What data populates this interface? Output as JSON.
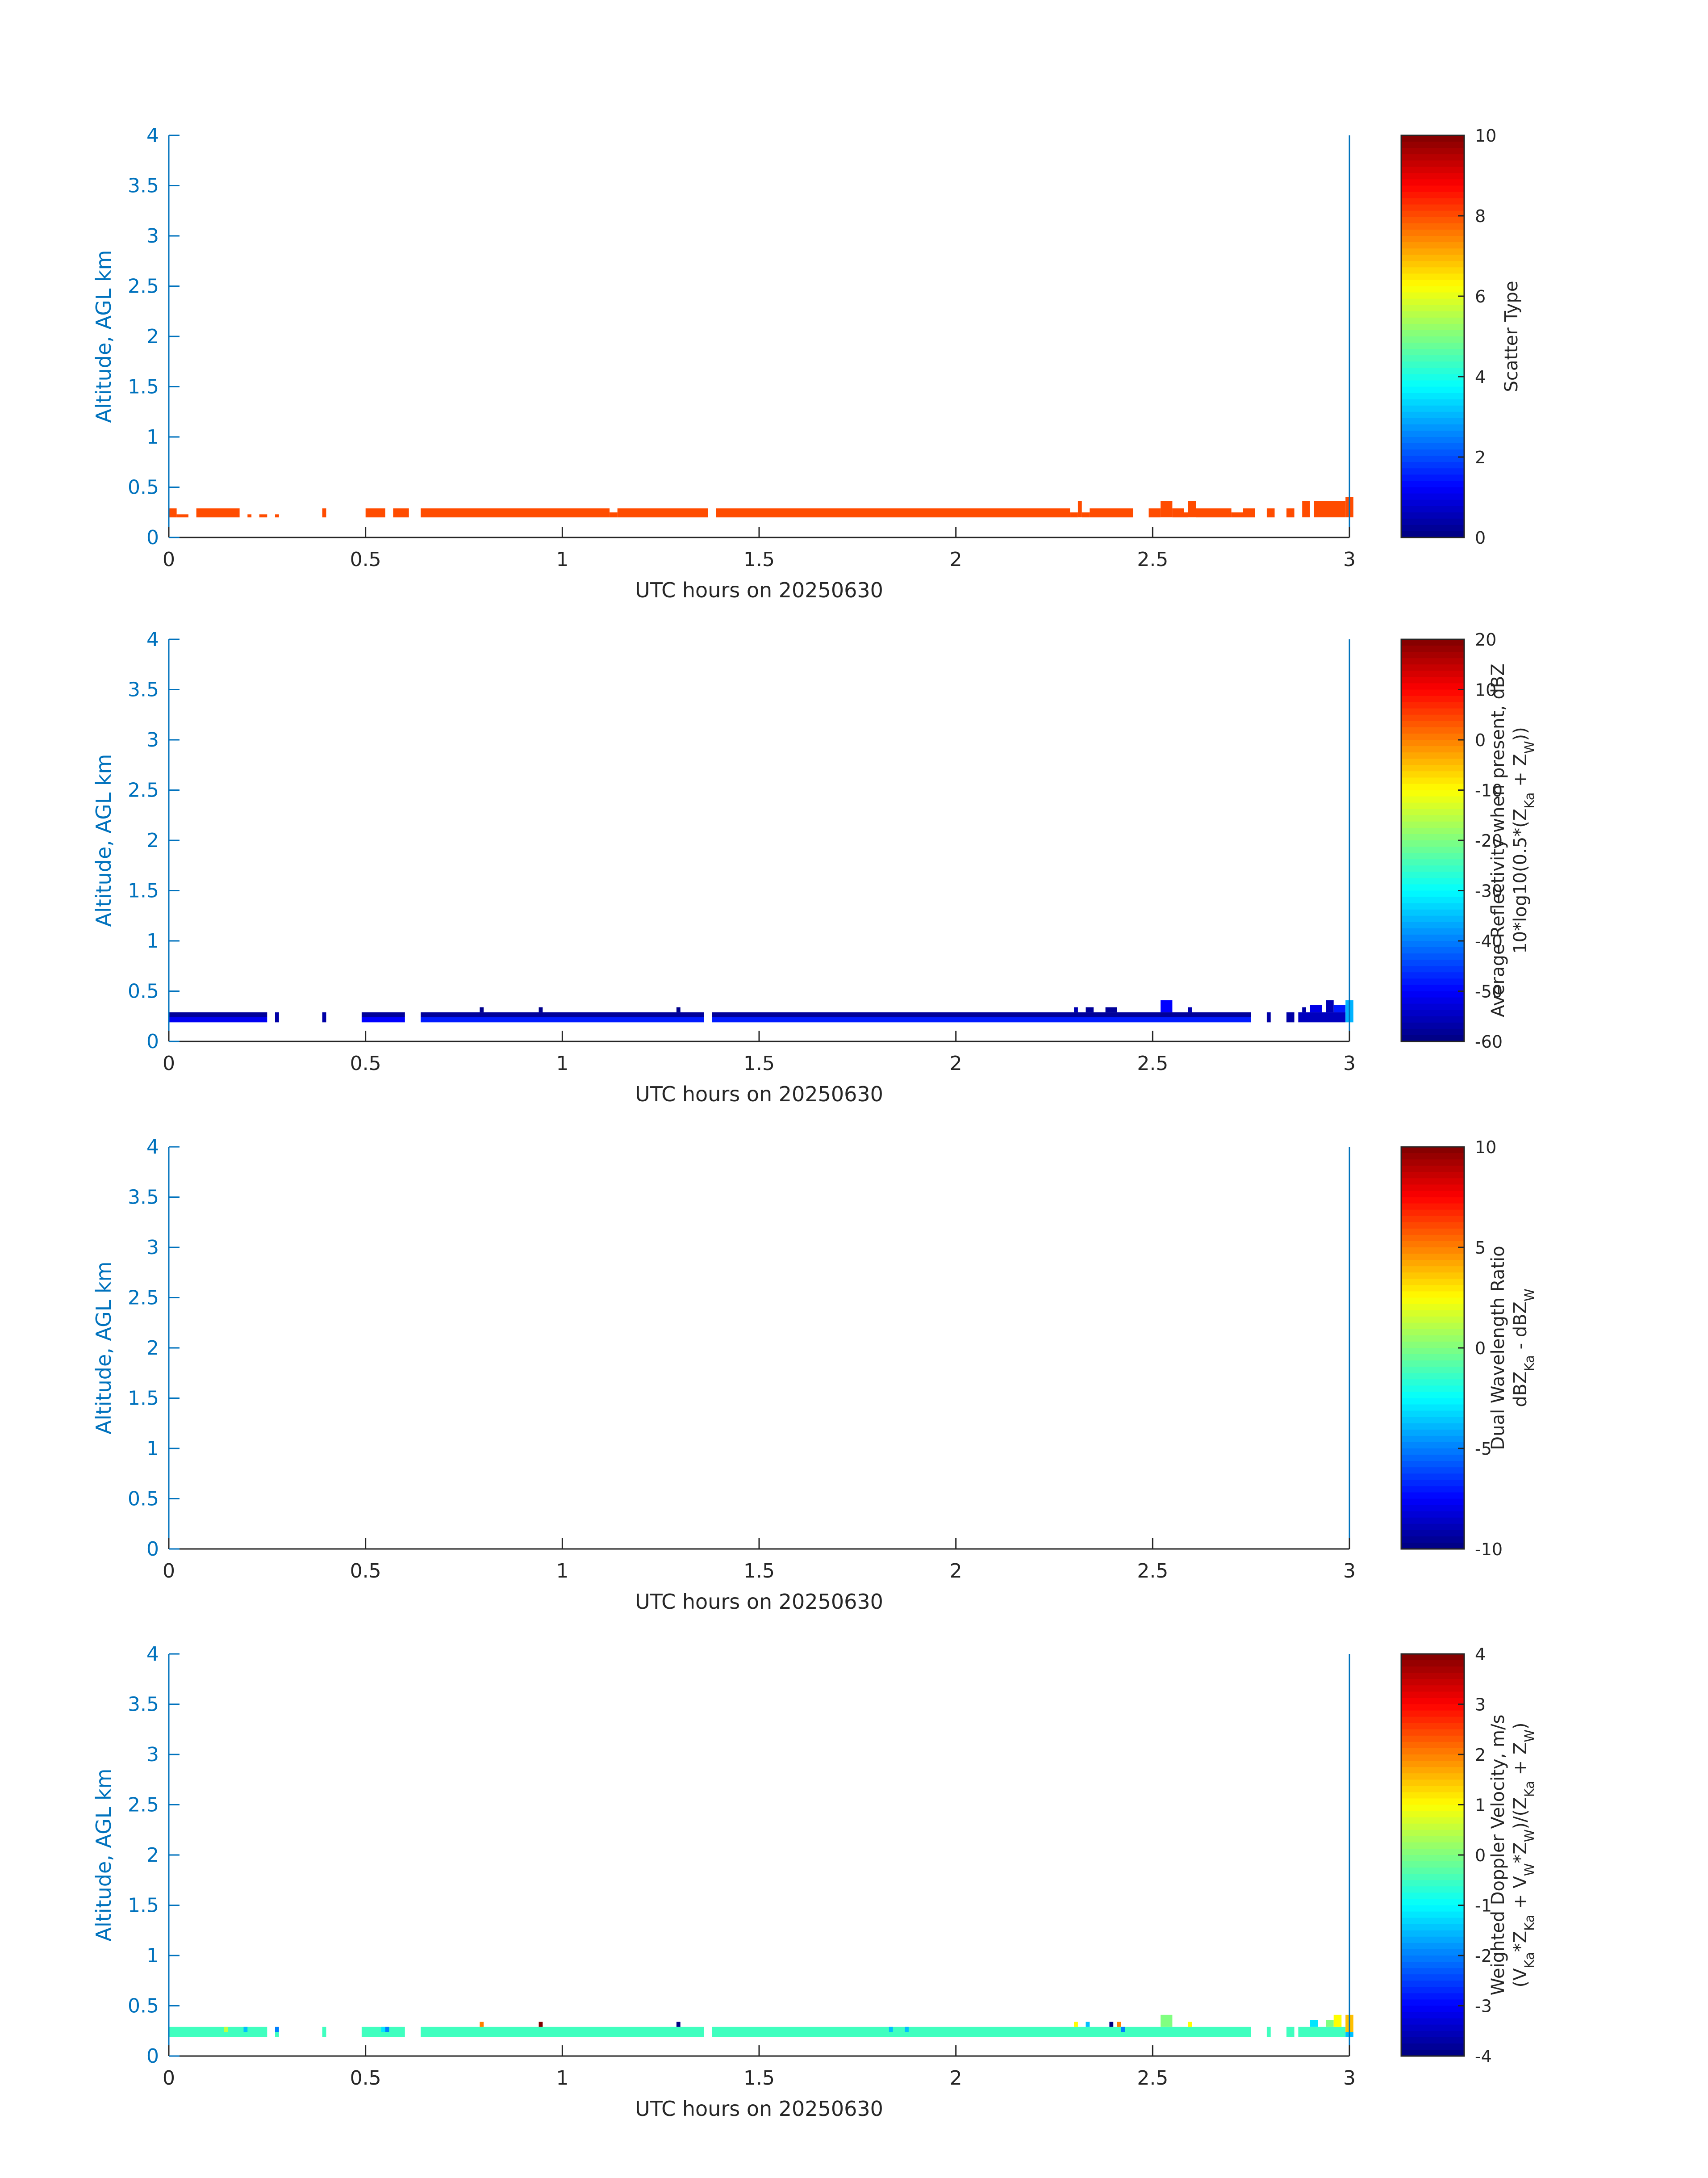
{
  "figure": {
    "colors": {
      "axis_blue": "#0072BD",
      "axis_black": "#262626",
      "background": "#ffffff"
    }
  },
  "chart_data": [
    {
      "type": "heatmap",
      "colormap": "jet",
      "xlabel": "UTC hours on 20250630",
      "ylabel": "Altitude, AGL km",
      "xlim": [
        0,
        3
      ],
      "ylim": [
        0,
        4
      ],
      "xticks": [
        "0",
        "0.5",
        "1",
        "1.5",
        "2",
        "2.5",
        "3"
      ],
      "yticks": [
        "0",
        "0.5",
        "1",
        "1.5",
        "2",
        "2.5",
        "3",
        "3.5",
        "4"
      ],
      "colorbar": {
        "label_lines": [
          "Scatter Type"
        ],
        "clim": [
          0,
          10
        ],
        "ticks": [
          "0",
          "2",
          "4",
          "6",
          "8",
          "10"
        ]
      },
      "value_description": "Scatter type 8 in a layer from about 0.2 to 0.3 km; top rises to 0.35-0.4 km near 2.3 h and after 2.5 h",
      "cells": [
        {
          "x0": 0.0,
          "x1": 0.02,
          "y0": 0.2,
          "y1": 0.29,
          "v": 8
        },
        {
          "x0": 0.02,
          "x1": 0.05,
          "y0": 0.2,
          "y1": 0.23,
          "v": 8
        },
        {
          "x0": 0.07,
          "x1": 0.18,
          "y0": 0.2,
          "y1": 0.29,
          "v": 8
        },
        {
          "x0": 0.2,
          "x1": 0.21,
          "y0": 0.2,
          "y1": 0.23,
          "v": 8
        },
        {
          "x0": 0.23,
          "x1": 0.25,
          "y0": 0.2,
          "y1": 0.23,
          "v": 8
        },
        {
          "x0": 0.27,
          "x1": 0.28,
          "y0": 0.2,
          "y1": 0.23,
          "v": 8
        },
        {
          "x0": 0.39,
          "x1": 0.4,
          "y0": 0.2,
          "y1": 0.29,
          "v": 8
        },
        {
          "x0": 0.5,
          "x1": 0.55,
          "y0": 0.2,
          "y1": 0.29,
          "v": 8
        },
        {
          "x0": 0.57,
          "x1": 0.61,
          "y0": 0.2,
          "y1": 0.29,
          "v": 8
        },
        {
          "x0": 0.64,
          "x1": 1.12,
          "y0": 0.2,
          "y1": 0.29,
          "v": 8
        },
        {
          "x0": 1.12,
          "x1": 1.14,
          "y0": 0.2,
          "y1": 0.25,
          "v": 8
        },
        {
          "x0": 1.14,
          "x1": 1.37,
          "y0": 0.2,
          "y1": 0.29,
          "v": 8
        },
        {
          "x0": 1.39,
          "x1": 2.29,
          "y0": 0.2,
          "y1": 0.29,
          "v": 8
        },
        {
          "x0": 2.29,
          "x1": 2.31,
          "y0": 0.2,
          "y1": 0.25,
          "v": 8
        },
        {
          "x0": 2.31,
          "x1": 2.32,
          "y0": 0.2,
          "y1": 0.36,
          "v": 8
        },
        {
          "x0": 2.32,
          "x1": 2.34,
          "y0": 0.2,
          "y1": 0.25,
          "v": 8
        },
        {
          "x0": 2.34,
          "x1": 2.45,
          "y0": 0.2,
          "y1": 0.29,
          "v": 8
        },
        {
          "x0": 2.49,
          "x1": 2.52,
          "y0": 0.2,
          "y1": 0.29,
          "v": 8
        },
        {
          "x0": 2.52,
          "x1": 2.55,
          "y0": 0.2,
          "y1": 0.36,
          "v": 8
        },
        {
          "x0": 2.55,
          "x1": 2.58,
          "y0": 0.2,
          "y1": 0.29,
          "v": 8
        },
        {
          "x0": 2.58,
          "x1": 2.59,
          "y0": 0.2,
          "y1": 0.25,
          "v": 8
        },
        {
          "x0": 2.59,
          "x1": 2.61,
          "y0": 0.2,
          "y1": 0.36,
          "v": 8
        },
        {
          "x0": 2.61,
          "x1": 2.7,
          "y0": 0.2,
          "y1": 0.29,
          "v": 8
        },
        {
          "x0": 2.7,
          "x1": 2.73,
          "y0": 0.2,
          "y1": 0.25,
          "v": 8
        },
        {
          "x0": 2.73,
          "x1": 2.76,
          "y0": 0.2,
          "y1": 0.29,
          "v": 8
        },
        {
          "x0": 2.79,
          "x1": 2.81,
          "y0": 0.2,
          "y1": 0.29,
          "v": 8
        },
        {
          "x0": 2.84,
          "x1": 2.86,
          "y0": 0.2,
          "y1": 0.29,
          "v": 8
        },
        {
          "x0": 2.88,
          "x1": 2.9,
          "y0": 0.2,
          "y1": 0.36,
          "v": 8
        },
        {
          "x0": 2.91,
          "x1": 2.99,
          "y0": 0.2,
          "y1": 0.36,
          "v": 8
        },
        {
          "x0": 2.99,
          "x1": 3.01,
          "y0": 0.2,
          "y1": 0.4,
          "v": 8
        }
      ]
    },
    {
      "type": "heatmap",
      "colormap": "jet",
      "xlabel": "UTC hours on 20250630",
      "ylabel": "Altitude, AGL km",
      "xlim": [
        0,
        3
      ],
      "ylim": [
        0,
        4
      ],
      "xticks": [
        "0",
        "0.5",
        "1",
        "1.5",
        "2",
        "2.5",
        "3"
      ],
      "yticks": [
        "0",
        "0.5",
        "1",
        "1.5",
        "2",
        "2.5",
        "3",
        "3.5",
        "4"
      ],
      "colorbar": {
        "label_lines": [
          "Average Reflectivity when present, dBZ",
          "10*log10(0.5*(Z_Ka + Z_W))"
        ],
        "clim": [
          -60,
          20
        ],
        "ticks": [
          "-60",
          "-50",
          "-40",
          "-30",
          "-20",
          "-10",
          "0",
          "10",
          "20"
        ]
      },
      "value_description": "Reflectivity about -58 dBZ in upper part of layer and about -50 dBZ near 0.2-0.25 km",
      "cells": [
        {
          "x0": 0.0,
          "x1": 0.25,
          "y0": 0.24,
          "y1": 0.29,
          "v": -58
        },
        {
          "x0": 0.0,
          "x1": 0.25,
          "y0": 0.19,
          "y1": 0.24,
          "v": -51
        },
        {
          "x0": 0.27,
          "x1": 0.28,
          "y0": 0.19,
          "y1": 0.29,
          "v": -57
        },
        {
          "x0": 0.39,
          "x1": 0.4,
          "y0": 0.19,
          "y1": 0.29,
          "v": -57
        },
        {
          "x0": 0.49,
          "x1": 0.6,
          "y0": 0.24,
          "y1": 0.29,
          "v": -58
        },
        {
          "x0": 0.49,
          "x1": 0.6,
          "y0": 0.19,
          "y1": 0.24,
          "v": -50
        },
        {
          "x0": 0.64,
          "x1": 1.36,
          "y0": 0.24,
          "y1": 0.29,
          "v": -58
        },
        {
          "x0": 0.64,
          "x1": 1.36,
          "y0": 0.19,
          "y1": 0.24,
          "v": -48
        },
        {
          "x0": 0.79,
          "x1": 0.8,
          "y0": 0.29,
          "y1": 0.34,
          "v": -59
        },
        {
          "x0": 0.94,
          "x1": 0.95,
          "y0": 0.29,
          "y1": 0.34,
          "v": -59
        },
        {
          "x0": 1.29,
          "x1": 1.3,
          "y0": 0.29,
          "y1": 0.34,
          "v": -59
        },
        {
          "x0": 1.38,
          "x1": 2.75,
          "y0": 0.24,
          "y1": 0.29,
          "v": -58
        },
        {
          "x0": 1.38,
          "x1": 2.75,
          "y0": 0.19,
          "y1": 0.24,
          "v": -48
        },
        {
          "x0": 2.3,
          "x1": 2.31,
          "y0": 0.29,
          "y1": 0.34,
          "v": -56
        },
        {
          "x0": 2.33,
          "x1": 2.35,
          "y0": 0.29,
          "y1": 0.34,
          "v": -58
        },
        {
          "x0": 2.38,
          "x1": 2.41,
          "y0": 0.29,
          "y1": 0.34,
          "v": -58
        },
        {
          "x0": 2.52,
          "x1": 2.55,
          "y0": 0.29,
          "y1": 0.41,
          "v": -50
        },
        {
          "x0": 2.59,
          "x1": 2.6,
          "y0": 0.29,
          "y1": 0.34,
          "v": -56
        },
        {
          "x0": 2.79,
          "x1": 2.8,
          "y0": 0.19,
          "y1": 0.29,
          "v": -57
        },
        {
          "x0": 2.84,
          "x1": 2.86,
          "y0": 0.19,
          "y1": 0.29,
          "v": -57
        },
        {
          "x0": 2.87,
          "x1": 2.99,
          "y0": 0.19,
          "y1": 0.29,
          "v": -55
        },
        {
          "x0": 2.88,
          "x1": 2.89,
          "y0": 0.29,
          "y1": 0.34,
          "v": -57
        },
        {
          "x0": 2.9,
          "x1": 2.93,
          "y0": 0.29,
          "y1": 0.36,
          "v": -52
        },
        {
          "x0": 2.94,
          "x1": 2.96,
          "y0": 0.29,
          "y1": 0.41,
          "v": -56
        },
        {
          "x0": 2.96,
          "x1": 2.99,
          "y0": 0.29,
          "y1": 0.36,
          "v": -48
        },
        {
          "x0": 2.99,
          "x1": 3.01,
          "y0": 0.19,
          "y1": 0.41,
          "v": -36
        }
      ]
    },
    {
      "type": "heatmap",
      "colormap": "jet",
      "xlabel": "UTC hours on 20250630",
      "ylabel": "Altitude, AGL km",
      "xlim": [
        0,
        3
      ],
      "ylim": [
        0,
        4
      ],
      "xticks": [
        "0",
        "0.5",
        "1",
        "1.5",
        "2",
        "2.5",
        "3"
      ],
      "yticks": [
        "0",
        "0.5",
        "1",
        "1.5",
        "2",
        "2.5",
        "3",
        "3.5",
        "4"
      ],
      "colorbar": {
        "label_lines": [
          "Dual Wavelength Ratio",
          "dBZ_Ka - dBZ_W"
        ],
        "clim": [
          -10,
          10
        ],
        "ticks": [
          "-10",
          "-5",
          "0",
          "5",
          "10"
        ]
      },
      "value_description": "No data plotted",
      "cells": []
    },
    {
      "type": "heatmap",
      "colormap": "jet",
      "xlabel": "UTC hours on 20250630",
      "ylabel": "Altitude, AGL km",
      "xlim": [
        0,
        3
      ],
      "ylim": [
        0,
        4
      ],
      "xticks": [
        "0",
        "0.5",
        "1",
        "1.5",
        "2",
        "2.5",
        "3"
      ],
      "yticks": [
        "0",
        "0.5",
        "1",
        "1.5",
        "2",
        "2.5",
        "3",
        "3.5",
        "4"
      ],
      "colorbar": {
        "label_lines": [
          "Weighted Doppler Velocity, m/s",
          "(V_Ka*Z_Ka + V_W*Z_W)/(Z_Ka + Z_W)"
        ],
        "clim": [
          -4,
          4
        ],
        "ticks": [
          "-4",
          "-3",
          "-2",
          "-1",
          "0",
          "1",
          "2",
          "3",
          "4"
        ]
      },
      "value_description": "Doppler velocity mostly near -0.5 m/s, with scattered cells between -4 and +4 m/s",
      "cells": [
        {
          "x0": 0.0,
          "x1": 0.25,
          "y0": 0.19,
          "y1": 0.29,
          "v": -0.5
        },
        {
          "x0": 0.14,
          "x1": 0.15,
          "y0": 0.24,
          "y1": 0.29,
          "v": 0.5
        },
        {
          "x0": 0.19,
          "x1": 0.2,
          "y0": 0.24,
          "y1": 0.29,
          "v": -1.5
        },
        {
          "x0": 0.27,
          "x1": 0.28,
          "y0": 0.24,
          "y1": 0.29,
          "v": -2.0
        },
        {
          "x0": 0.27,
          "x1": 0.28,
          "y0": 0.19,
          "y1": 0.24,
          "v": -0.5
        },
        {
          "x0": 0.39,
          "x1": 0.4,
          "y0": 0.19,
          "y1": 0.29,
          "v": -0.5
        },
        {
          "x0": 0.49,
          "x1": 0.6,
          "y0": 0.19,
          "y1": 0.29,
          "v": -0.5
        },
        {
          "x0": 0.55,
          "x1": 0.56,
          "y0": 0.24,
          "y1": 0.29,
          "v": -2.0
        },
        {
          "x0": 0.54,
          "x1": 0.55,
          "y0": 0.24,
          "y1": 0.29,
          "v": -1.2
        },
        {
          "x0": 0.64,
          "x1": 1.36,
          "y0": 0.19,
          "y1": 0.29,
          "v": -0.5
        },
        {
          "x0": 0.79,
          "x1": 0.8,
          "y0": 0.29,
          "y1": 0.34,
          "v": 2.0
        },
        {
          "x0": 0.94,
          "x1": 0.95,
          "y0": 0.29,
          "y1": 0.34,
          "v": 4.0
        },
        {
          "x0": 1.29,
          "x1": 1.3,
          "y0": 0.29,
          "y1": 0.34,
          "v": -4.0
        },
        {
          "x0": 1.38,
          "x1": 2.75,
          "y0": 0.19,
          "y1": 0.29,
          "v": -0.5
        },
        {
          "x0": 1.83,
          "x1": 1.84,
          "y0": 0.24,
          "y1": 0.29,
          "v": -1.5
        },
        {
          "x0": 1.87,
          "x1": 1.88,
          "y0": 0.24,
          "y1": 0.29,
          "v": -1.5
        },
        {
          "x0": 2.3,
          "x1": 2.31,
          "y0": 0.29,
          "y1": 0.34,
          "v": 1.0
        },
        {
          "x0": 2.33,
          "x1": 2.34,
          "y0": 0.29,
          "y1": 0.34,
          "v": -1.5
        },
        {
          "x0": 2.39,
          "x1": 2.4,
          "y0": 0.29,
          "y1": 0.34,
          "v": -4.0
        },
        {
          "x0": 2.41,
          "x1": 2.42,
          "y0": 0.29,
          "y1": 0.34,
          "v": 2.0
        },
        {
          "x0": 2.42,
          "x1": 2.43,
          "y0": 0.24,
          "y1": 0.29,
          "v": -2.0
        },
        {
          "x0": 2.52,
          "x1": 2.55,
          "y0": 0.29,
          "y1": 0.41,
          "v": 0.0
        },
        {
          "x0": 2.59,
          "x1": 2.6,
          "y0": 0.29,
          "y1": 0.34,
          "v": 1.0
        },
        {
          "x0": 2.79,
          "x1": 2.8,
          "y0": 0.19,
          "y1": 0.29,
          "v": -0.5
        },
        {
          "x0": 2.84,
          "x1": 2.86,
          "y0": 0.19,
          "y1": 0.29,
          "v": -0.5
        },
        {
          "x0": 2.87,
          "x1": 2.99,
          "y0": 0.19,
          "y1": 0.29,
          "v": -0.5
        },
        {
          "x0": 2.9,
          "x1": 2.92,
          "y0": 0.29,
          "y1": 0.36,
          "v": -1.2
        },
        {
          "x0": 2.94,
          "x1": 2.96,
          "y0": 0.29,
          "y1": 0.36,
          "v": 0.0
        },
        {
          "x0": 2.96,
          "x1": 2.98,
          "y0": 0.29,
          "y1": 0.41,
          "v": 1.0
        },
        {
          "x0": 2.99,
          "x1": 3.01,
          "y0": 0.24,
          "y1": 0.41,
          "v": 1.5
        },
        {
          "x0": 2.99,
          "x1": 3.01,
          "y0": 0.19,
          "y1": 0.24,
          "v": -1.5
        }
      ]
    }
  ]
}
